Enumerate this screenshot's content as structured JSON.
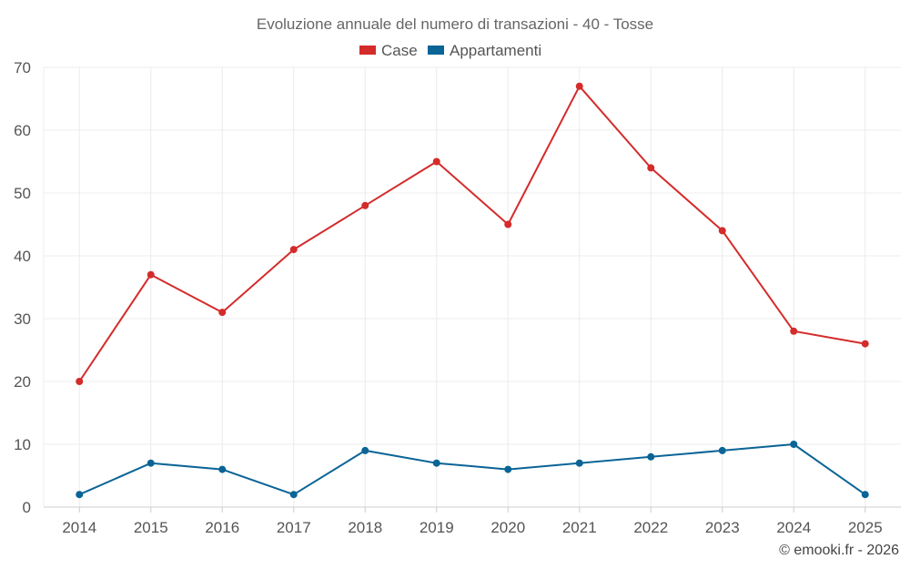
{
  "chart_data": {
    "type": "line",
    "title": "Evoluzione annuale del numero di transazioni - 40 - Tosse",
    "categories": [
      "2014",
      "2015",
      "2016",
      "2017",
      "2018",
      "2019",
      "2020",
      "2021",
      "2022",
      "2023",
      "2024",
      "2025"
    ],
    "series": [
      {
        "name": "Case",
        "color": "#d42b2b",
        "values": [
          20,
          37,
          31,
          41,
          48,
          55,
          45,
          67,
          54,
          44,
          28,
          26
        ]
      },
      {
        "name": "Appartamenti",
        "color": "#0a6496",
        "values": [
          2,
          7,
          6,
          2,
          9,
          7,
          6,
          7,
          8,
          9,
          10,
          2
        ]
      }
    ],
    "ylim": [
      0,
      70
    ],
    "yticks": [
      0,
      10,
      20,
      30,
      40,
      50,
      60,
      70
    ],
    "xlabel": "",
    "ylabel": "",
    "grid": true,
    "legend_position": "top-center"
  },
  "credit": "© emooki.fr - 2026"
}
